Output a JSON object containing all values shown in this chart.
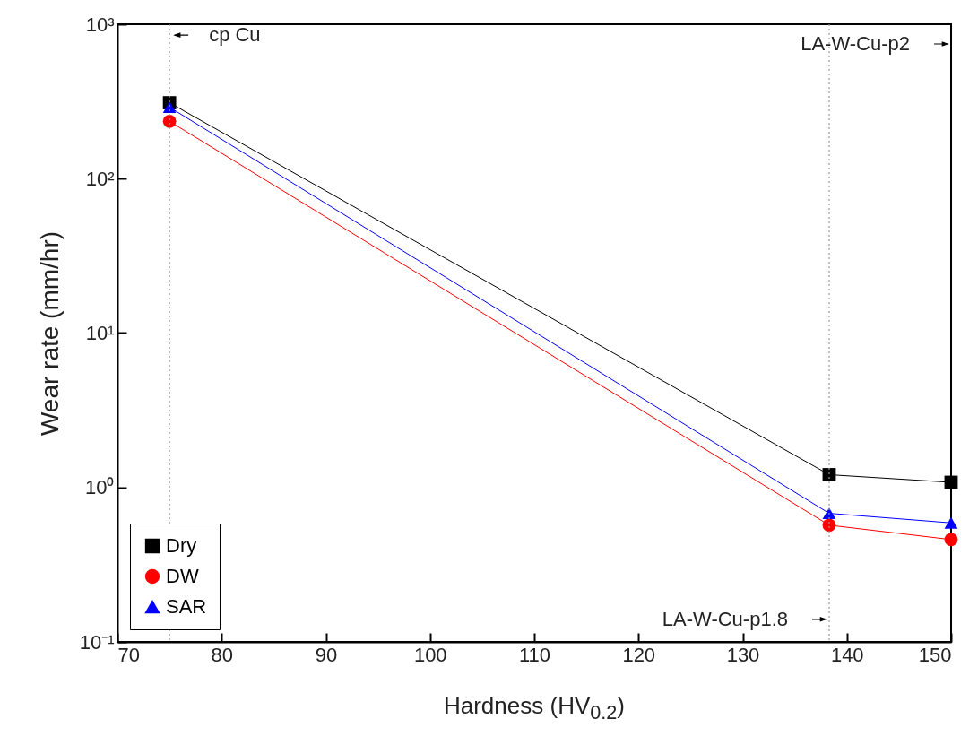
{
  "chart_data": {
    "type": "line",
    "xlabel": "Hardness (HV$_{0.2}$)",
    "ylabel": "Wear rate (mm/hr)",
    "x": [
      75,
      138.3,
      150
    ],
    "series": [
      {
        "name": "Dry",
        "color": "#000000",
        "marker": "square",
        "values": [
          310,
          1.21,
          1.08
        ]
      },
      {
        "name": "DW",
        "color": "#ff0000",
        "marker": "circle",
        "values": [
          235,
          0.57,
          0.46
        ]
      },
      {
        "name": "SAR",
        "color": "#0000ff",
        "marker": "triangle",
        "values": [
          290,
          0.68,
          0.59
        ]
      }
    ],
    "log": "y",
    "xlim": [
      70,
      150
    ],
    "xticks": [
      70,
      80,
      90,
      100,
      110,
      120,
      130,
      140,
      150
    ],
    "ylim": [
      0.1,
      1000
    ],
    "yticks": [
      {
        "value": 0.1,
        "label": "10⁻¹"
      },
      {
        "value": 1,
        "label": "10⁰"
      },
      {
        "value": 10,
        "label": "10¹"
      },
      {
        "value": 100,
        "label": "10²"
      },
      {
        "value": 1000,
        "label": "10³"
      }
    ],
    "grid": false,
    "legend": "bottom left",
    "ref_lines": [
      {
        "axis": "x",
        "value": 75,
        "color": "#999999",
        "line_style": "dotted"
      },
      {
        "axis": "x",
        "value": 138.3,
        "color": "#999999",
        "line_style": "dotted"
      }
    ],
    "annotations": [
      {
        "text": "cp Cu",
        "x": 75,
        "y": 850
      },
      {
        "text": "LA-W-Cu-p1.8",
        "x": 138.3,
        "y": 0.14
      },
      "LA-W-Cu-p2"
    ]
  }
}
